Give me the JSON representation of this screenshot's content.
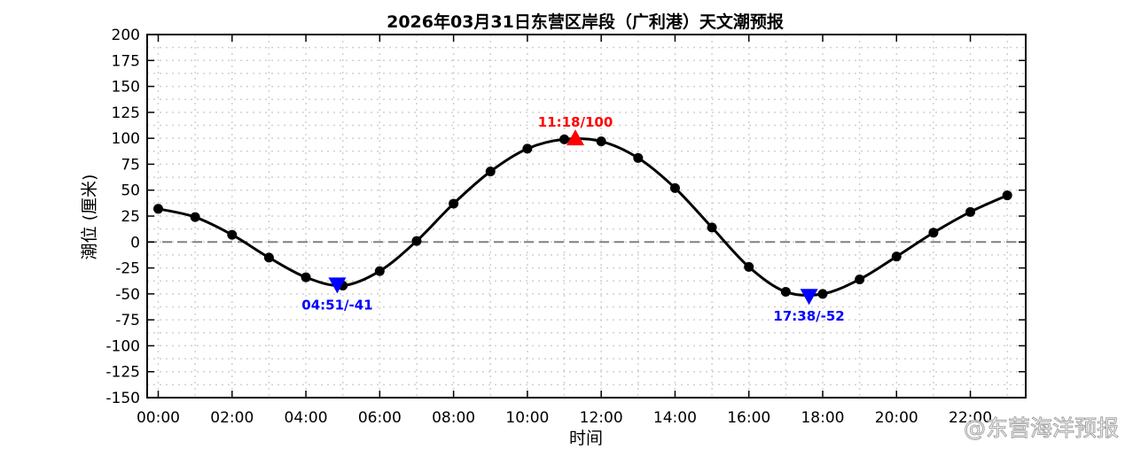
{
  "title": "2026年03月31日东营区岸段（广利港）天文潮预报",
  "watermark": "@东营海洋预报",
  "chart_data": {
    "type": "line",
    "title": "2026年03月31日东营区岸段（广利港）天文潮预报",
    "xlabel": "时间",
    "ylabel": "潮位 (厘米)",
    "xlim": [
      -0.3,
      23.5
    ],
    "ylim": [
      -150,
      200
    ],
    "x_ticks": [
      0,
      2,
      4,
      6,
      8,
      10,
      12,
      14,
      16,
      18,
      20,
      22
    ],
    "x_tick_labels": [
      "00:00",
      "02:00",
      "04:00",
      "06:00",
      "08:00",
      "10:00",
      "12:00",
      "14:00",
      "16:00",
      "18:00",
      "20:00",
      "22:00"
    ],
    "y_ticks": [
      200,
      175,
      150,
      125,
      100,
      75,
      50,
      25,
      0,
      -25,
      -50,
      -75,
      -100,
      -125,
      -150
    ],
    "grid": true,
    "zero_line": true,
    "series": [
      {
        "x": [
          0,
          1,
          2,
          3,
          4,
          5,
          6,
          7,
          8,
          9,
          10,
          11,
          12,
          13,
          14,
          15,
          16,
          17,
          18,
          19,
          20,
          21,
          22,
          23
        ],
        "values": [
          32,
          24,
          7,
          -15,
          -34,
          -42,
          -28,
          1,
          37,
          68,
          90,
          99,
          97,
          81,
          52,
          14,
          -24,
          -48,
          -50,
          -36,
          -14,
          9,
          29,
          45
        ],
        "color": "#000000"
      }
    ],
    "annotations": [
      {
        "kind": "high",
        "x": 11.3,
        "y": 100,
        "label": "11:18/100",
        "color": "#ff0000",
        "marker": "triangle-up"
      },
      {
        "kind": "low",
        "x": 4.85,
        "y": -41,
        "label": "04:51/-41",
        "color": "#0000ff",
        "marker": "triangle-down"
      },
      {
        "kind": "low",
        "x": 17.63,
        "y": -52,
        "label": "17:38/-52",
        "color": "#0000ff",
        "marker": "triangle-down"
      }
    ]
  }
}
